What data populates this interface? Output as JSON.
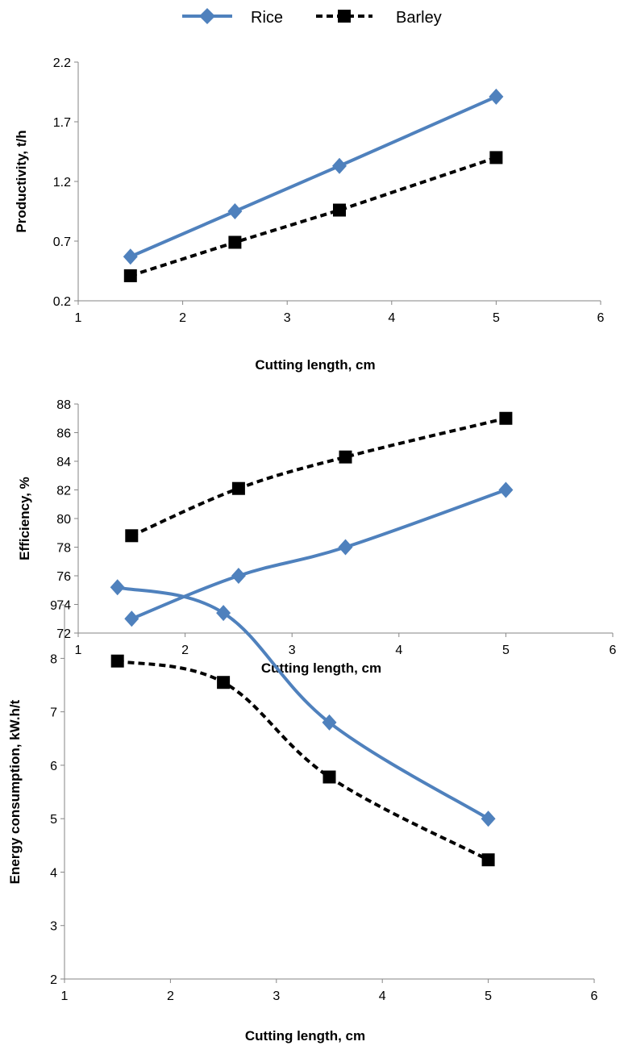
{
  "legend": [
    {
      "name": "Rice",
      "color": "#4f81bd",
      "marker": "diamond",
      "dash": "solid"
    },
    {
      "name": "Barley",
      "color": "#000000",
      "marker": "square",
      "dash": "dashed"
    }
  ],
  "chart_data": [
    {
      "type": "line",
      "xlabel": "Cutting length, cm",
      "ylabel": "Productivity, t/h",
      "xlim": [
        1,
        6
      ],
      "ylim": [
        0.2,
        2.2
      ],
      "xticks": [
        "1",
        "2",
        "3",
        "4",
        "5",
        "6"
      ],
      "yticks": [
        "0.2",
        "0.7",
        "1.2",
        "1.7",
        "2.2"
      ],
      "x": [
        1.5,
        2.5,
        3.5,
        5
      ],
      "series": [
        {
          "name": "Rice",
          "values": [
            0.57,
            0.95,
            1.33,
            1.91
          ]
        },
        {
          "name": "Barley",
          "values": [
            0.41,
            0.69,
            0.96,
            1.4
          ]
        }
      ]
    },
    {
      "type": "line",
      "xlabel": "Cutting length, cm",
      "ylabel": "Efficiency, %",
      "xlim": [
        1,
        6
      ],
      "ylim": [
        72,
        88
      ],
      "xticks": [
        "1",
        "2",
        "3",
        "4",
        "5",
        "6"
      ],
      "yticks": [
        "72",
        "74",
        "76",
        "78",
        "80",
        "82",
        "84",
        "86",
        "88"
      ],
      "x": [
        1.5,
        2.5,
        3.5,
        5
      ],
      "series": [
        {
          "name": "Rice",
          "values": [
            73,
            76,
            78,
            82
          ]
        },
        {
          "name": "Barley",
          "values": [
            78.8,
            82.1,
            84.3,
            87
          ]
        }
      ]
    },
    {
      "type": "line",
      "xlabel": "Cutting length, cm",
      "ylabel": "Energy consumption, kW.h/t",
      "xlim": [
        1,
        6
      ],
      "ylim": [
        2,
        9.5
      ],
      "xticks": [
        "1",
        "2",
        "3",
        "4",
        "5",
        "6"
      ],
      "yticks": [
        "2",
        "3",
        "4",
        "5",
        "6",
        "7",
        "8",
        "9"
      ],
      "x": [
        1.5,
        2.5,
        3.5,
        5
      ],
      "series": [
        {
          "name": "Rice",
          "values": [
            9.33,
            8.85,
            6.8,
            5.0
          ]
        },
        {
          "name": "Barley",
          "values": [
            7.95,
            7.55,
            5.78,
            4.23
          ]
        }
      ]
    }
  ]
}
